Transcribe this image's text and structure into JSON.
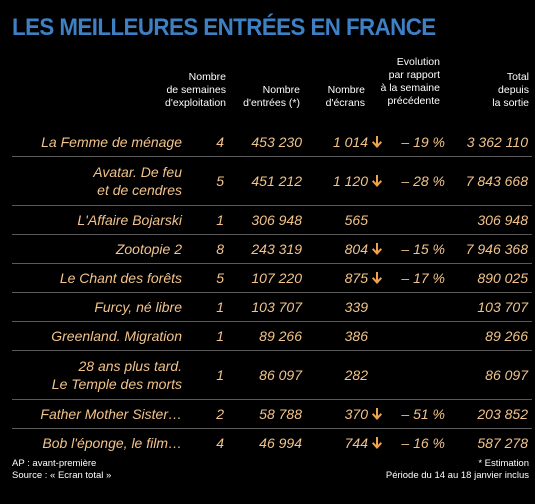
{
  "title": "LES MEILLEURES ENTRÉES EN FRANCE",
  "columns": {
    "weeks": "Nombre\nde semaines\nd'exploitation",
    "entries": "Nombre\nd'entrées (*)",
    "screens": "Nombre\nd'écrans",
    "evolution": "Evolution\npar rapport\nà la semaine\nprécédente",
    "total": "Total\ndepuis\nla sortie"
  },
  "colors": {
    "title": "#3d80c4",
    "values": "#f2c38a",
    "arrow": "#f2a24a",
    "divider": "#5a5a5a",
    "background": "#000000"
  },
  "rows": [
    {
      "film": "La Femme de ménage",
      "weeks": "4",
      "entries": "453 230",
      "screens": "1 014",
      "trend": "down-arrow",
      "evolution": "– 19 %",
      "total": "3 362 110"
    },
    {
      "film": "Avatar. De feu\net de cendres",
      "weeks": "5",
      "entries": "451 212",
      "screens": "1 120",
      "trend": "down-arrow",
      "evolution": "– 28 %",
      "total": "7 843 668"
    },
    {
      "film": "L'Affaire Bojarski",
      "weeks": "1",
      "entries": "306 948",
      "screens": "565",
      "trend": "",
      "evolution": "",
      "total": "306 948"
    },
    {
      "film": "Zootopie 2",
      "weeks": "8",
      "entries": "243 319",
      "screens": "804",
      "trend": "down-arrow",
      "evolution": "– 15 %",
      "total": "7 946 368"
    },
    {
      "film": "Le Chant des forêts",
      "weeks": "5",
      "entries": "107 220",
      "screens": "875",
      "trend": "down-arrow",
      "evolution": "– 17 %",
      "total": "890 025"
    },
    {
      "film": "Furcy, né libre",
      "weeks": "1",
      "entries": "103 707",
      "screens": "339",
      "trend": "",
      "evolution": "",
      "total": "103 707"
    },
    {
      "film": "Greenland. Migration",
      "weeks": "1",
      "entries": "89 266",
      "screens": "386",
      "trend": "",
      "evolution": "",
      "total": "89 266"
    },
    {
      "film": "28 ans plus tard.\nLe Temple des morts",
      "weeks": "1",
      "entries": "86 097",
      "screens": "282",
      "trend": "",
      "evolution": "",
      "total": "86 097"
    },
    {
      "film": "Father Mother Sister…",
      "weeks": "2",
      "entries": "58 788",
      "screens": "370",
      "trend": "down-arrow",
      "evolution": "– 51 %",
      "total": "203 852"
    },
    {
      "film": "Bob l'éponge, le film…",
      "weeks": "4",
      "entries": "46 994",
      "screens": "744",
      "trend": "down-arrow",
      "evolution": "– 16 %",
      "total": "587 278"
    }
  ],
  "footer": {
    "left_line1": "AP : avant-première",
    "left_line2": "Source : « Ecran total »",
    "right_line1": "* Estimation",
    "right_line2": "Période du 14 au 18 janvier inclus"
  }
}
